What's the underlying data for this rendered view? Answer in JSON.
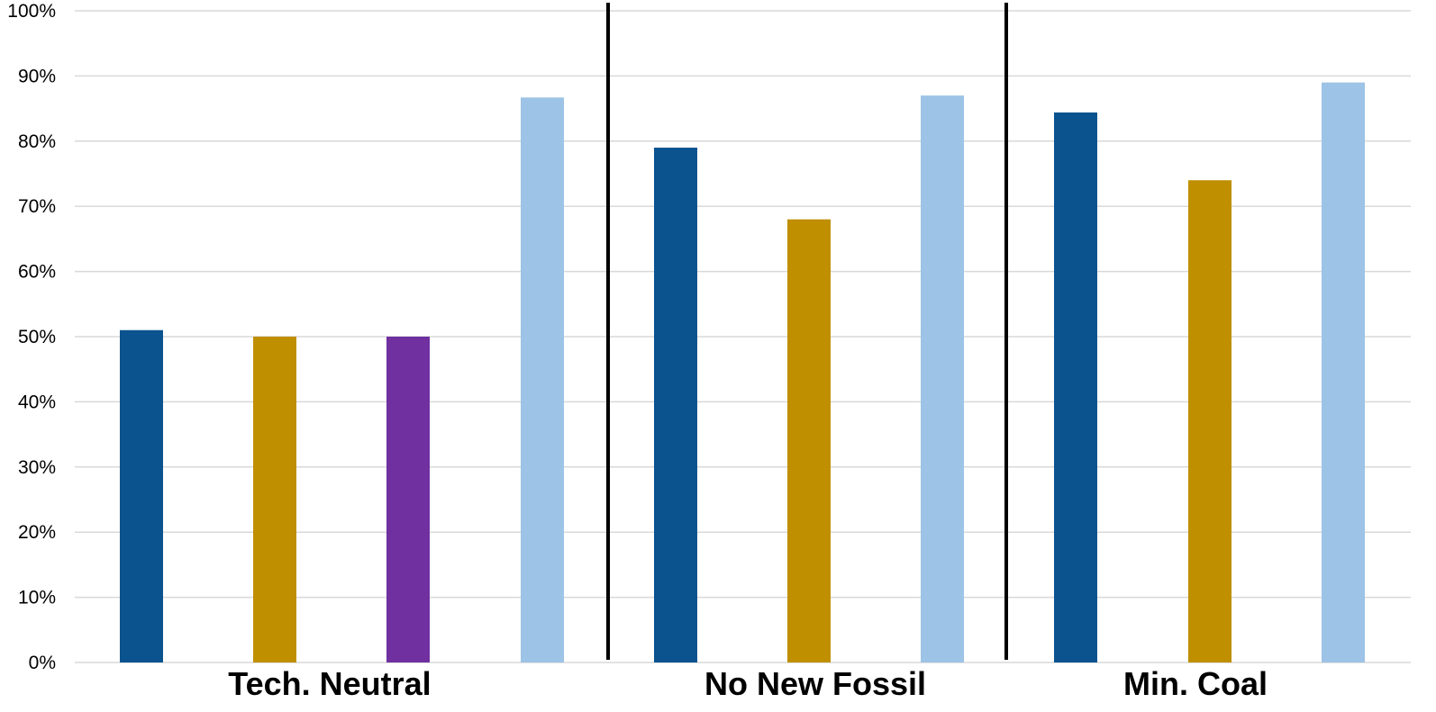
{
  "chart_data": {
    "type": "bar",
    "yaxis": {
      "min": 0,
      "max": 100,
      "step": 10,
      "tick_labels": [
        "0%",
        "10%",
        "20%",
        "30%",
        "40%",
        "50%",
        "60%",
        "70%",
        "80%",
        "90%",
        "100%"
      ],
      "grid": true
    },
    "legend": "none",
    "groups": [
      {
        "label": "Tech. Neutral",
        "bars": [
          {
            "value": 51,
            "color": "#0b538e"
          },
          {
            "value": 50,
            "color": "#bf8f00"
          },
          {
            "value": 50,
            "color": "#7030a0"
          },
          {
            "value": 86.7,
            "color": "#9dc3e6"
          }
        ]
      },
      {
        "label": "No New Fossil",
        "bars": [
          {
            "value": 79,
            "color": "#0b538e"
          },
          {
            "value": 68,
            "color": "#bf8f00"
          },
          {
            "value": 87,
            "color": "#9dc3e6"
          }
        ]
      },
      {
        "label": "Min. Coal",
        "bars": [
          {
            "value": 84.4,
            "color": "#0b538e"
          },
          {
            "value": 74,
            "color": "#bf8f00"
          },
          {
            "value": 89,
            "color": "#9dc3e6"
          }
        ]
      }
    ],
    "colors": {
      "gridline": "#d9d9d9",
      "divider": "#000000"
    }
  }
}
